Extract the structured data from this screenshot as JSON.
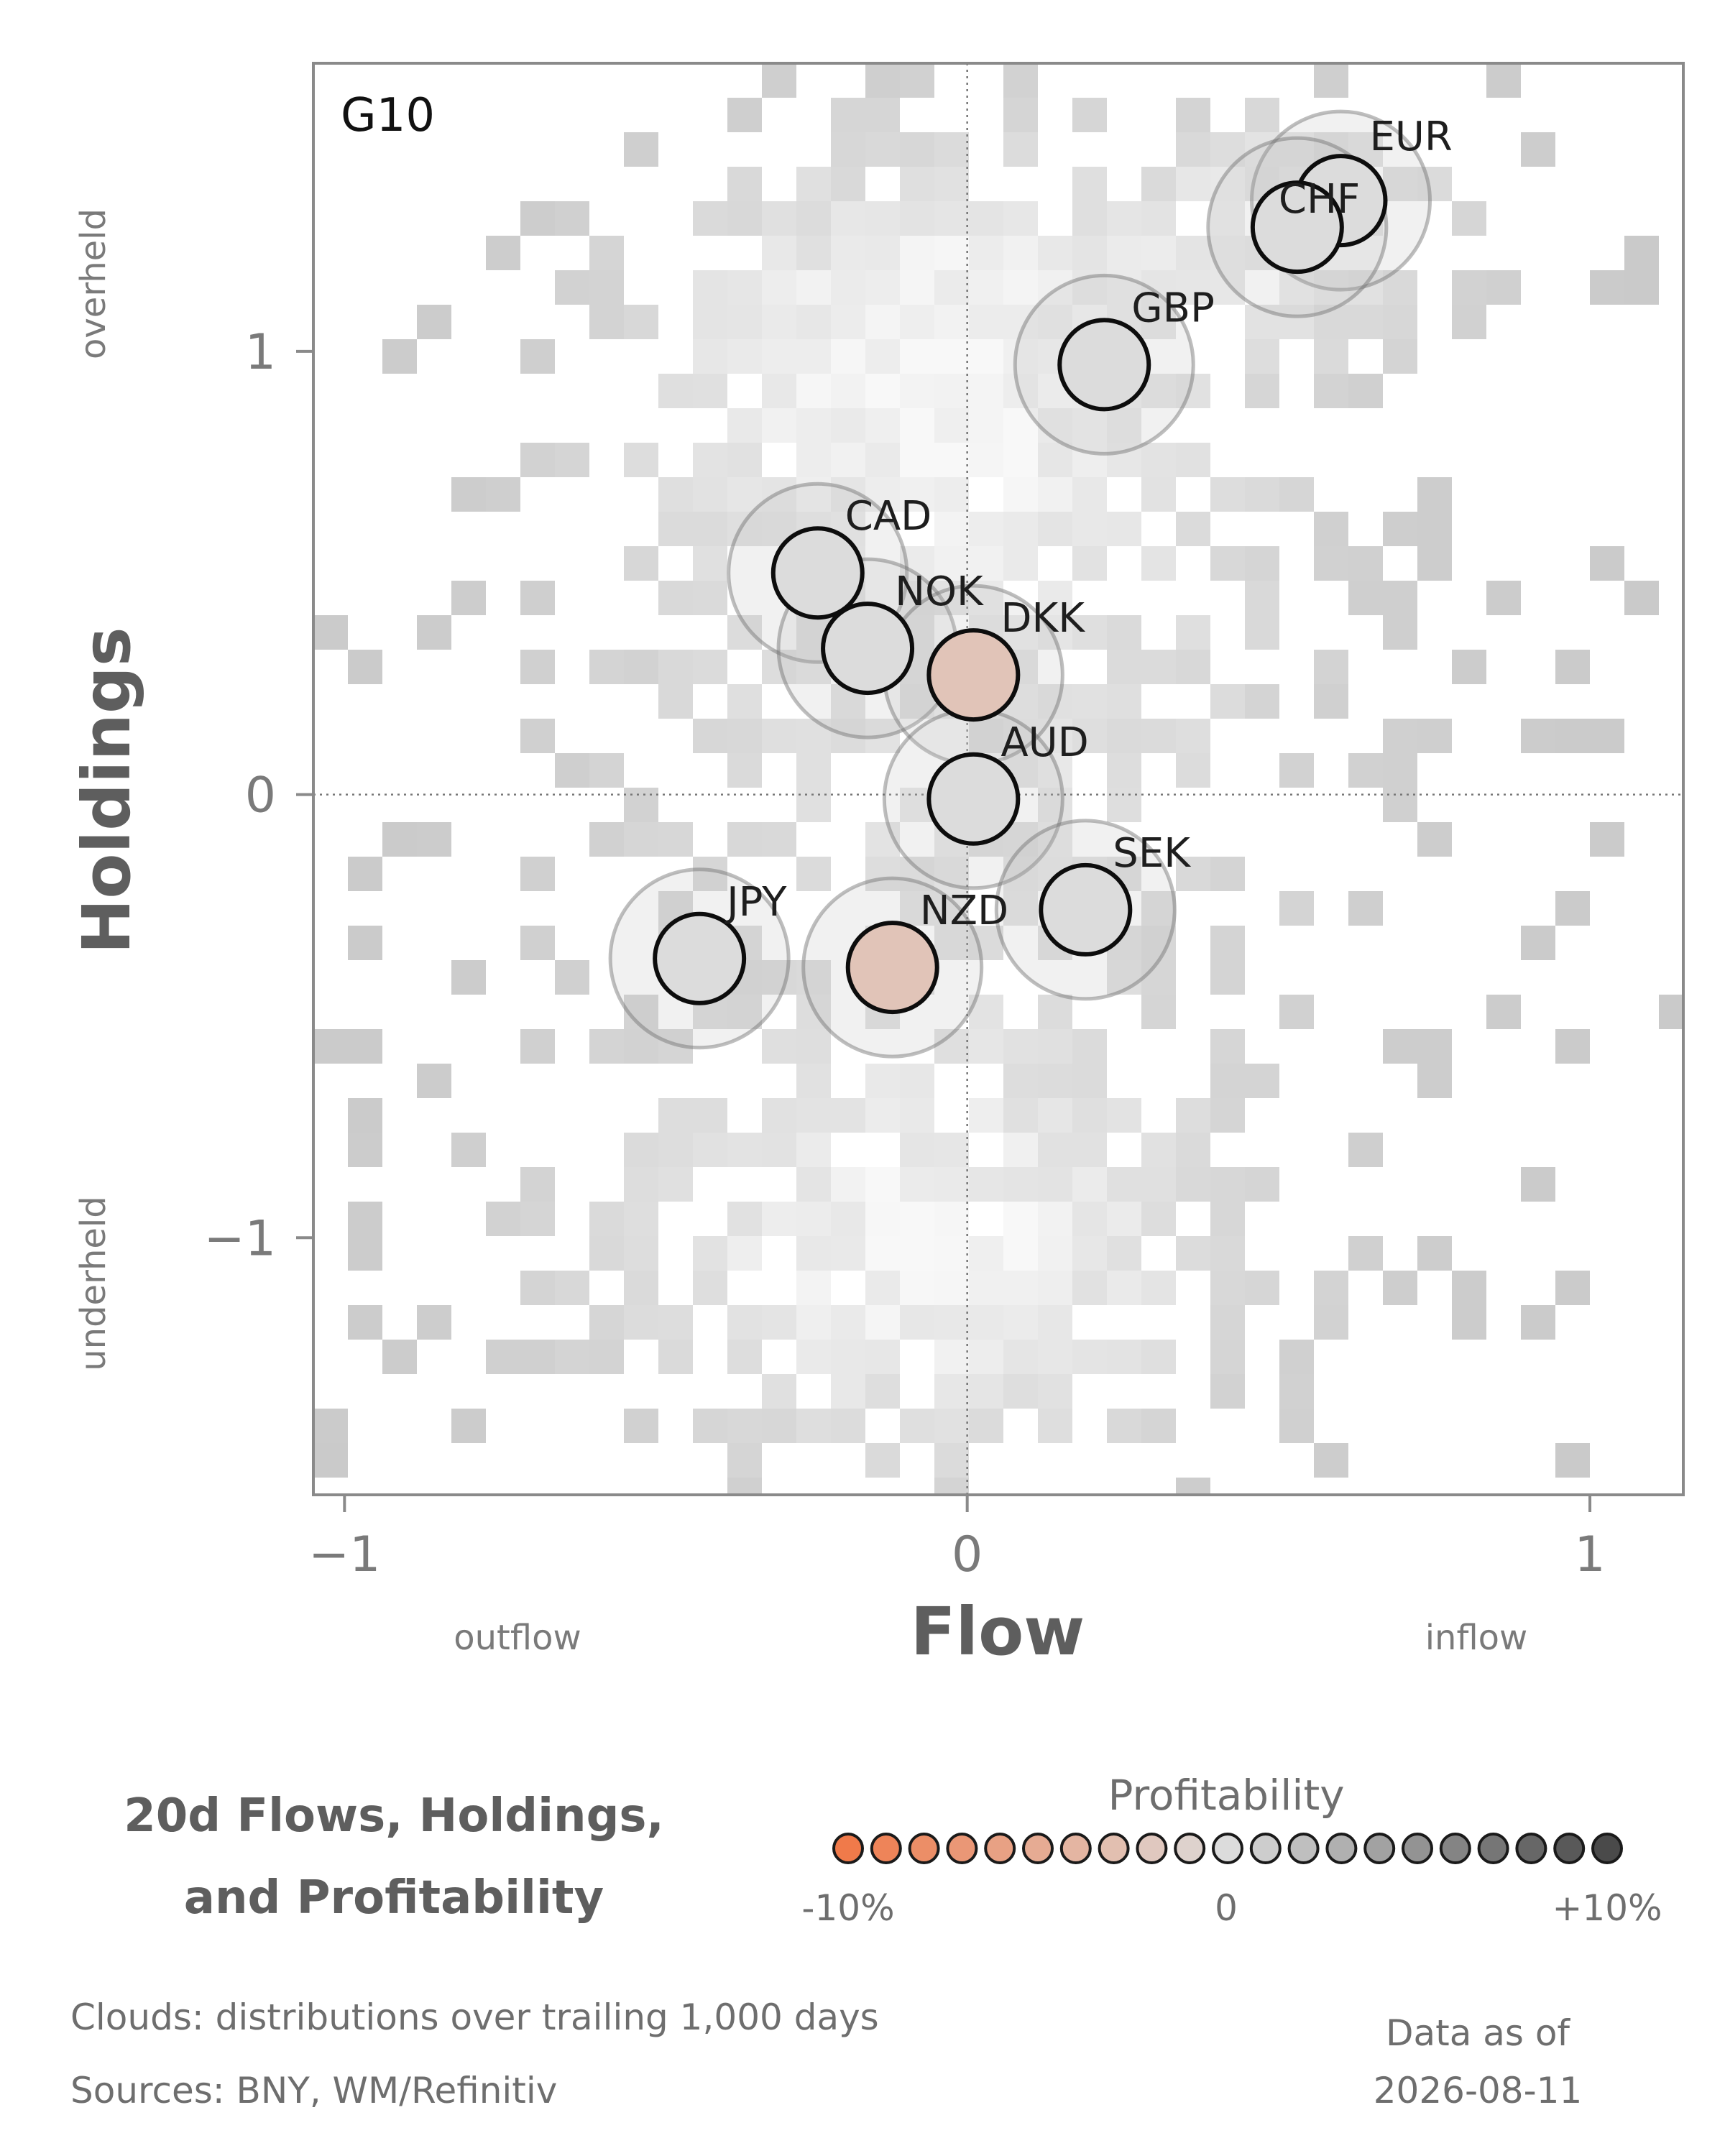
{
  "chart_data": {
    "type": "scatter",
    "panel_label": "G10",
    "xlabel": "Flow",
    "ylabel": "Holdings",
    "x_side_labels": {
      "left": "outflow",
      "right": "inflow"
    },
    "y_side_labels": {
      "top": "overheld",
      "bottom": "underheld"
    },
    "xlim": [
      -1.05,
      1.15
    ],
    "ylim": [
      -1.58,
      1.65
    ],
    "x_ticks": [
      {
        "value": -1,
        "label": "−1"
      },
      {
        "value": 0,
        "label": "0"
      },
      {
        "value": 1,
        "label": "1"
      }
    ],
    "y_ticks": [
      {
        "value": 1,
        "label": "1"
      },
      {
        "value": 0,
        "label": "0"
      },
      {
        "value": -1,
        "label": "−1"
      }
    ],
    "reference_lines": {
      "x": 0,
      "y": 0,
      "style": "dotted"
    },
    "background": "heatmap of trailing 1,000-day flow/holdings distribution (gray cloud)",
    "points": [
      {
        "label": "EUR",
        "x": 0.6,
        "y": 1.34,
        "profitability": 0.0
      },
      {
        "label": "CHF",
        "x": 0.53,
        "y": 1.28,
        "profitability": 0.0
      },
      {
        "label": "GBP",
        "x": 0.22,
        "y": 0.97,
        "profitability": 0.0
      },
      {
        "label": "CAD",
        "x": -0.24,
        "y": 0.5,
        "profitability": 0.0
      },
      {
        "label": "NOK",
        "x": -0.16,
        "y": 0.33,
        "profitability": 0.0
      },
      {
        "label": "DKK",
        "x": 0.01,
        "y": 0.27,
        "profitability": -0.025
      },
      {
        "label": "AUD",
        "x": 0.01,
        "y": -0.01,
        "profitability": 0.0
      },
      {
        "label": "SEK",
        "x": 0.19,
        "y": -0.26,
        "profitability": 0.0
      },
      {
        "label": "JPY",
        "x": -0.43,
        "y": -0.37,
        "profitability": 0.0
      },
      {
        "label": "NZD",
        "x": -0.12,
        "y": -0.39,
        "profitability": -0.025
      }
    ]
  },
  "subtitle_lines": [
    "20d Flows, Holdings,",
    "and Profitability"
  ],
  "legend": {
    "title": "Profitability",
    "min_label": "-10%",
    "mid_label": "0",
    "max_label": "+10%",
    "min_value": -0.1,
    "max_value": 0.1,
    "steps": 21,
    "colors": [
      "#f07a4a",
      "#dcdcdc",
      "#4a4a4a"
    ]
  },
  "footer": {
    "clouds_note": "Clouds:  distributions over trailing 1,000 days",
    "sources": "Sources:  BNY, WM/Refinitiv",
    "data_as_of_label": "Data as of",
    "data_as_of_date": "2026-08-11"
  },
  "colors": {
    "frame": "#8a8a8a",
    "axis_text": "#7a7a7a",
    "title_text": "#5e5e5e",
    "cloud_light": "#f6f6f6",
    "cloud_dark": "#c8c8c8"
  }
}
